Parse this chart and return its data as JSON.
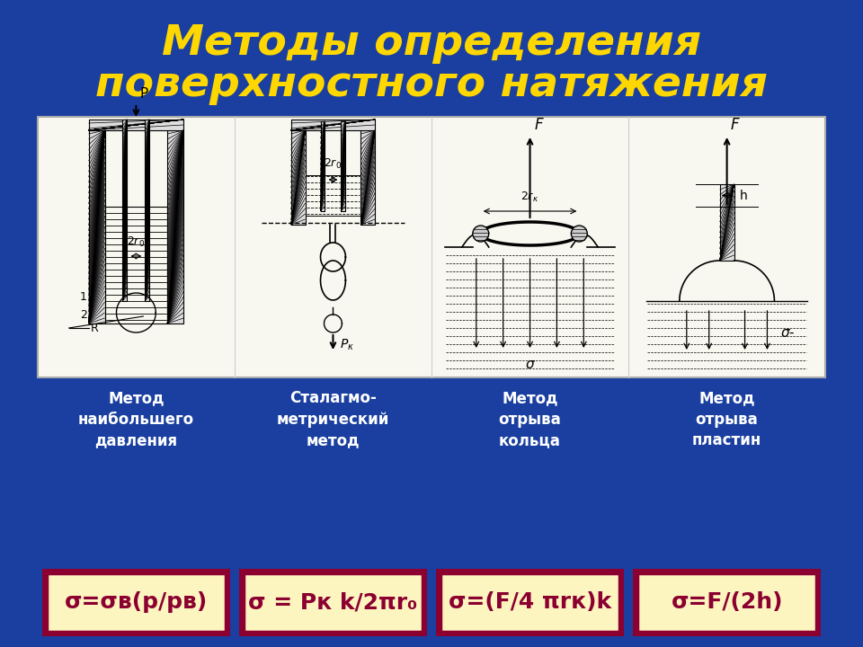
{
  "title_line1": "Методы определения",
  "title_line2": "поверхностного натяжения",
  "title_color": "#FFD700",
  "bg_color": "#1a3fa0",
  "image_bg": "#f8f8f0",
  "method_labels": [
    "Метод\nнаибольшего\nдавления",
    "Сталагмо-\nметрический\nметод",
    "Метод\nотрыва\nкольца",
    "Метод\nотрыва\nпластин"
  ],
  "formulas": [
    "σ=σв(p/pв)",
    "σ = Pк k/2πr₀",
    "σ=(F/4 πrк)k",
    "σ=F/(2h)"
  ],
  "formula_box_bg": "#fdf5c0",
  "formula_box_border": "#8b0030",
  "formula_text_color": "#8b0030",
  "label_text_color": "#ffffff",
  "method_label_fontsize": 12,
  "formula_fontsize": 18,
  "title_fontsize": 34
}
